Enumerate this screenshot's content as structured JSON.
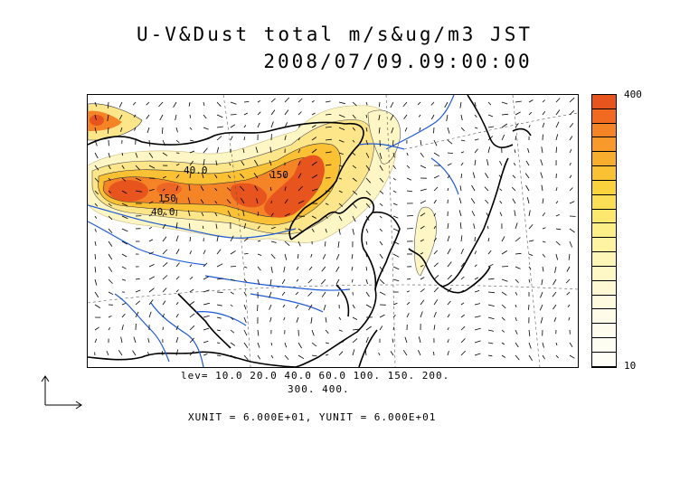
{
  "title": {
    "line1": "U-V&Dust total m/s&ug/m3 JST",
    "line2": "2008/07/09.09:00:00"
  },
  "colorbar": {
    "max_label": "400",
    "min_label": "10",
    "colors": [
      "#e8541e",
      "#f26a22",
      "#f58426",
      "#f7992b",
      "#f8ad2f",
      "#f9c133",
      "#fad23d",
      "#fbde55",
      "#fce86e",
      "#fdef88",
      "#fdf3a1",
      "#fef6b6",
      "#fef8c7",
      "#fef9d4",
      "#fefadf",
      "#fefbe8",
      "#fefced",
      "#fefdf2",
      "#fefdf6"
    ]
  },
  "legend": {
    "levels_line1": "lev= 10.0 20.0 40.0 60.0 100. 150. 200.",
    "levels_line2": "300. 400.",
    "units": "XUNIT = 6.000E+01, YUNIT = 6.000E+01"
  },
  "contour_labels": [
    "40.0",
    "150",
    "40.0",
    "150"
  ],
  "colors": {
    "coast": "#000000",
    "rivers": "#1f5bd6",
    "dust_high": "#e8541e",
    "dust_low": "#fef6c4"
  }
}
